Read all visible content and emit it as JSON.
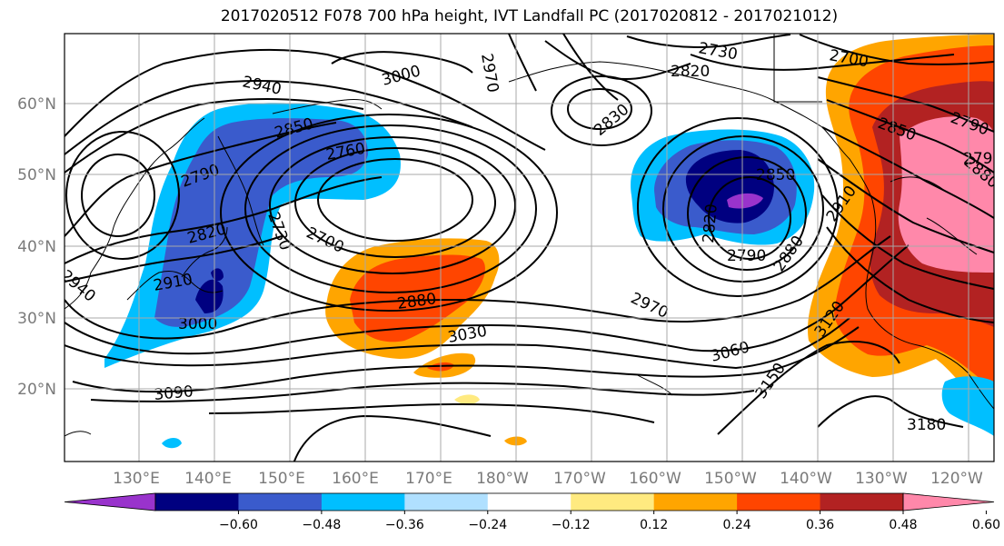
{
  "title": "2017020512 F078 700 hPa height, IVT Landfall PC (2017020812 - 2017021012)",
  "lon_ticks": [
    "130°E",
    "140°E",
    "150°E",
    "160°E",
    "170°E",
    "180°W",
    "170°W",
    "160°W",
    "150°W",
    "140°W",
    "130°W",
    "120°W"
  ],
  "lat_ticks": [
    "60°N",
    "50°N",
    "40°N",
    "30°N",
    "20°N"
  ],
  "contour_labels": [
    "2730",
    "2820",
    "2700",
    "3000",
    "2970",
    "2940",
    "2850",
    "2760",
    "2790",
    "2830",
    "2850",
    "2790",
    "2850",
    "2880",
    "2910",
    "2820",
    "2790",
    "2880",
    "2970",
    "3060",
    "3150",
    "3120",
    "3030",
    "2820",
    "2730",
    "2700",
    "2880",
    "3000",
    "2910",
    "3090",
    "3180",
    "2940",
    "2790"
  ],
  "colorbar": {
    "colors": [
      "#9933cc",
      "#000080",
      "#3a5bcc",
      "#00bfff",
      "#b0e0ff",
      "#ffffff",
      "#ffea80",
      "#ffa500",
      "#ff4500",
      "#b22222",
      "#ff88aa"
    ],
    "tick_labels": [
      "−0.60",
      "−0.48",
      "−0.36",
      "−0.24",
      "−0.12",
      "0.12",
      "0.24",
      "0.36",
      "0.48",
      "0.60"
    ]
  }
}
